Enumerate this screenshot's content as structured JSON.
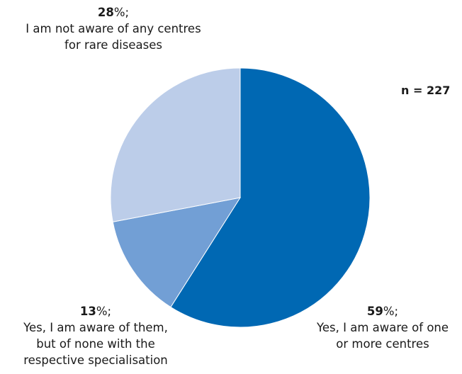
{
  "chart_data": {
    "type": "pie",
    "n_label": "n = 227",
    "slices": [
      {
        "value": 59,
        "pct_text": "59",
        "unit": "%;",
        "label_lines": [
          "Yes, I am aware of one",
          "or more centres"
        ],
        "color": "#0068b3"
      },
      {
        "value": 13,
        "pct_text": "13",
        "unit": "%;",
        "label_lines": [
          "Yes, I am aware of them,",
          "but of none with the",
          "respective specialisation"
        ],
        "color": "#729fd5"
      },
      {
        "value": 28,
        "pct_text": "28",
        "unit": "%;",
        "label_lines": [
          "I am not aware of any centres",
          "for rare diseases"
        ],
        "color": "#bccde9"
      }
    ]
  }
}
